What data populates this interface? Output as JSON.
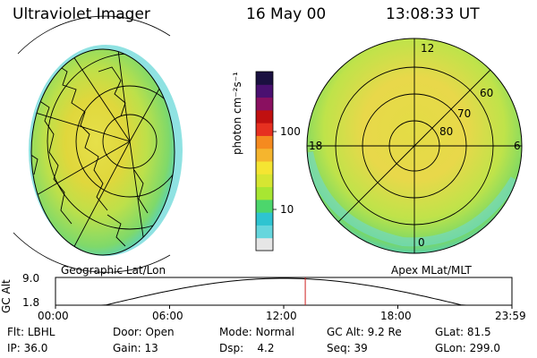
{
  "header": {
    "instrument": "Ultraviolet Imager",
    "date": "16 May 00",
    "time": "13:08:33 UT"
  },
  "colorbar": {
    "label": "photon cm⁻²s⁻¹",
    "ticks": [
      "100",
      "10"
    ],
    "scale": "log",
    "colors": [
      "#e6e6e6",
      "#66d6dd",
      "#2ec4d1",
      "#4cd66c",
      "#a8e632",
      "#d6e632",
      "#f5e532",
      "#f5b52e",
      "#f58a1f",
      "#e63020",
      "#c01010",
      "#8a1060",
      "#4a1070",
      "#1a1040"
    ]
  },
  "geo_panel": {
    "caption": "Geographic Lat/Lon"
  },
  "mag_panel": {
    "caption": "Apex MLat/MLT",
    "mlt_labels": {
      "top": "12",
      "left": "18",
      "right": "6",
      "bottom": "0"
    },
    "mlat_labels": [
      "60",
      "70",
      "80"
    ]
  },
  "altitude_plot": {
    "ylabel": "GC Alt",
    "yticks": [
      "9.0",
      "1.8"
    ],
    "xticks": [
      "00:00",
      "06:00",
      "12:00",
      "18:00",
      "23:59"
    ],
    "current_time_marker": "13:08",
    "marker_color": "#cc2020"
  },
  "status": {
    "row1": [
      {
        "key": "Flt:",
        "val": "LBHL"
      },
      {
        "key": "Door:",
        "val": "Open"
      },
      {
        "key": "Mode:",
        "val": "Normal"
      },
      {
        "key": "GC Alt:",
        "val": "9.2 Re"
      },
      {
        "key": "GLat:",
        "val": "81.5"
      }
    ],
    "row2": [
      {
        "key": "IP:",
        "val": "36.0"
      },
      {
        "key": "Gain:",
        "val": "13"
      },
      {
        "key": "Dsp:",
        "val": "4.2"
      },
      {
        "key": "Seq:",
        "val": "39"
      },
      {
        "key": "GLon:",
        "val": "299.0"
      }
    ]
  }
}
